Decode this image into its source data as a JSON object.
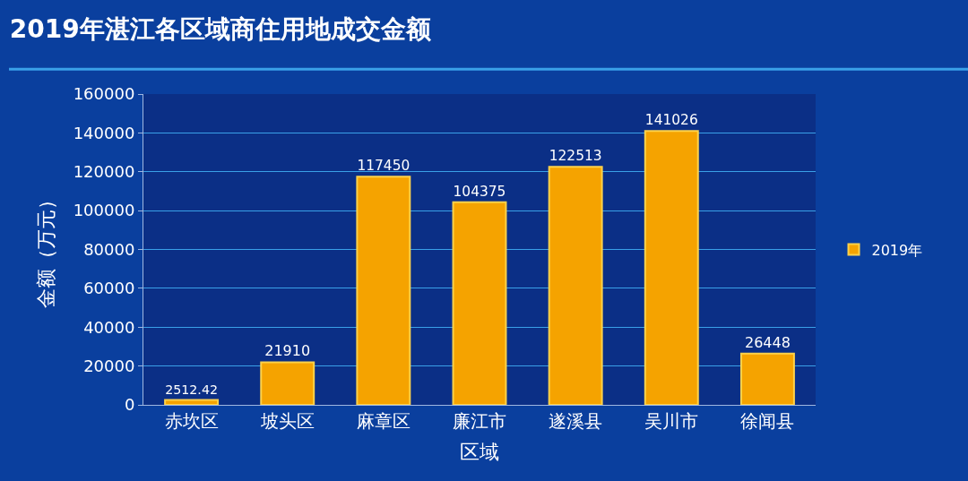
{
  "chart_data": {
    "type": "bar",
    "title": "2019年湛江各区域商住用地成交金额",
    "xlabel": "区域",
    "ylabel": "金额（万元）",
    "categories": [
      "赤坎区",
      "坡头区",
      "麻章区",
      "廉江市",
      "遂溪县",
      "吴川市",
      "徐闻县"
    ],
    "series": [
      {
        "name": "2019年",
        "color": "#f5a300",
        "values": [
          2512.42,
          21910,
          117450,
          104375,
          122513,
          141026,
          26448
        ]
      }
    ],
    "ylim": [
      0,
      160000
    ],
    "yticks": [
      0,
      20000,
      40000,
      60000,
      80000,
      100000,
      120000,
      140000,
      160000
    ],
    "grid": "y",
    "legend": "right",
    "data_labels": true
  }
}
